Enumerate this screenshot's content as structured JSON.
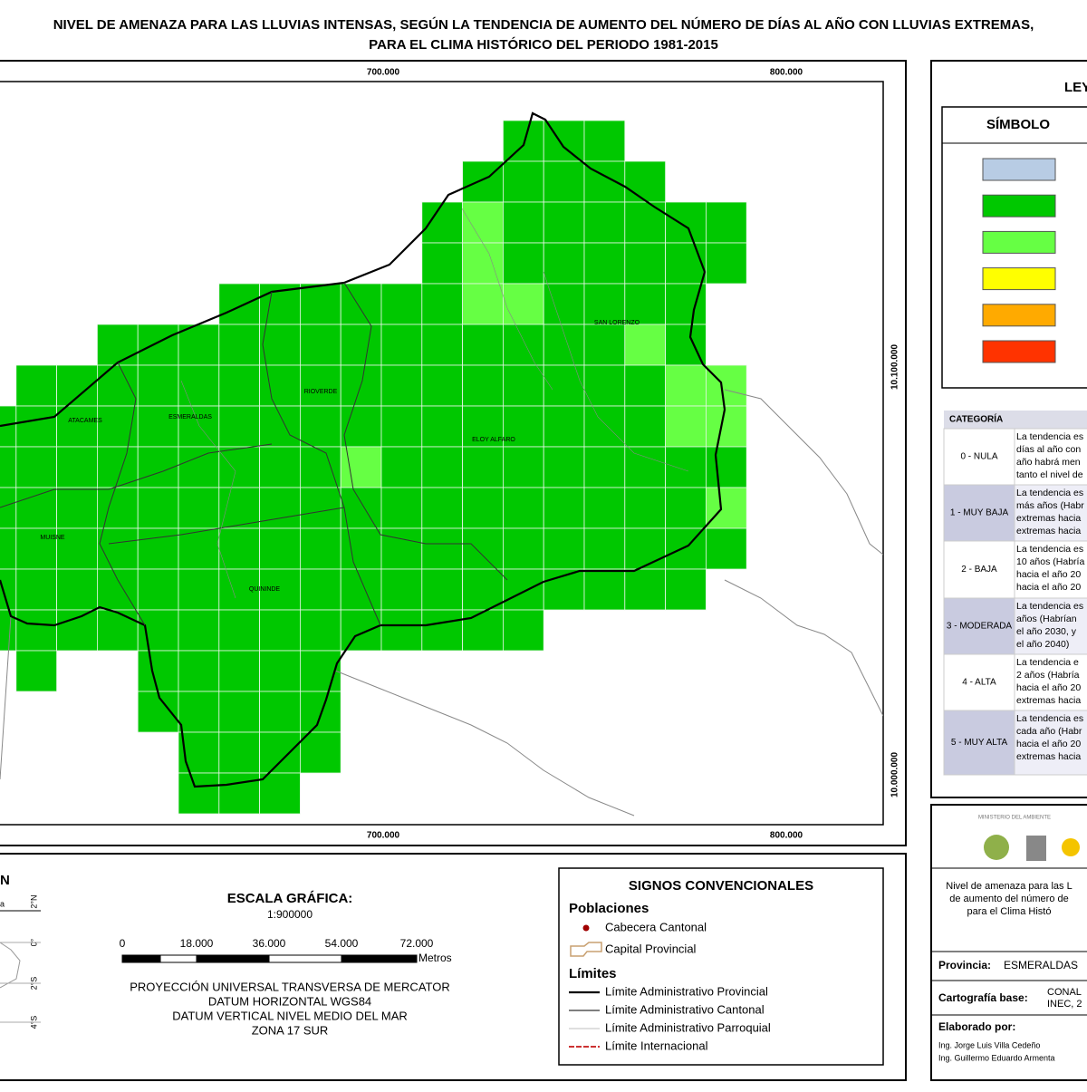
{
  "title": [
    "NIVEL DE AMENAZA PARA LAS LLUVIAS INTENSAS, SEGÚN LA TENDENCIA DE AUMENTO DEL NÚMERO DE DÍAS AL AÑO CON LLUVIAS EXTREMAS,",
    "PARA EL CLIMA HISTÓRICO DEL PERIODO 1981-2015"
  ],
  "map": {
    "x_labels": [
      "700.000",
      "800.000"
    ],
    "y_labels": [
      "10.100.000",
      "10.000.000"
    ],
    "places": [
      "SAN LORENZO",
      "RIOVERDE",
      "ATACAMES",
      "ESMERALDAS",
      "ELOY ALFARO",
      "MUISNE",
      "QUININDE"
    ]
  },
  "legend": {
    "title": "LEYENDA",
    "symbol_header": "SÍMBOLO",
    "colors": [
      "#b8cce4",
      "#00c800",
      "#66ff44",
      "#ffff00",
      "#ffaa00",
      "#ff3300"
    ],
    "category_header": "CATEGORÍA",
    "categories": [
      {
        "name": "0 - NULA",
        "text": [
          "La tendencia es",
          "días al año con",
          "año habrá men",
          "tanto el nivel de"
        ]
      },
      {
        "name": "1 - MUY BAJA",
        "text": [
          "La tendencia es",
          "más años (Habr",
          "extremas hacia",
          "extremas hacia"
        ]
      },
      {
        "name": "2 - BAJA",
        "text": [
          "La tendencia es",
          "10 años (Habría",
          "hacia el año 20",
          "hacia el año 20"
        ]
      },
      {
        "name": "3 - MODERADA",
        "text": [
          "La tendencia es",
          "años (Habrían",
          "el año 2030, y",
          "el año 2040)"
        ]
      },
      {
        "name": "4 - ALTA",
        "text": [
          "La tendencia e",
          "2 años (Habría",
          "hacia el año 20",
          "extremas hacia"
        ]
      },
      {
        "name": "5 - MUY ALTA",
        "text": [
          "La tendencia es",
          "cada año (Habr",
          "hacia el año 20",
          "extremas hacia"
        ]
      }
    ]
  },
  "inset": {
    "title": "N",
    "label": "a",
    "latitudes": [
      "2°N",
      "0°",
      "2°S",
      "4°S"
    ]
  },
  "scale": {
    "title": "ESCALA GRÁFICA:",
    "ratio": "1:900000",
    "ticks": [
      "0",
      "18.000",
      "36.000",
      "54.000",
      "72.000"
    ],
    "unit": "Metros",
    "projection": [
      "PROYECCIÓN UNIVERSAL TRANSVERSA DE MERCATOR",
      "DATUM HORIZONTAL WGS84",
      "DATUM VERTICAL NIVEL MEDIO DEL MAR",
      "ZONA 17 SUR"
    ]
  },
  "signs": {
    "title": "SIGNOS CONVENCIONALES",
    "populations": "Poblaciones",
    "cantonal": "Cabecera Cantonal",
    "provincial": "Capital Provincial",
    "limits": "Límites",
    "limit_items": [
      "Límite Administrativo Provincial",
      "Límite Administrativo Cantonal",
      "Límite Administrativo Parroquial",
      "Límite Internacional"
    ]
  },
  "info": {
    "ministry": "MINISTERIO DEL AMBIENTE",
    "description": [
      "Nivel de amenaza para las L",
      "de aumento del número de",
      "para el Clima Histó"
    ],
    "province_label": "Provincia:",
    "province": "ESMERALDAS",
    "base_label": "Cartografía base:",
    "base": [
      "CONAL",
      "INEC, 2"
    ],
    "author_label": "Elaborado por:",
    "authors": [
      "Ing. Jorge Luis Villa Cedeño",
      "Ing. Guillermo Eduardo Armenta"
    ]
  }
}
